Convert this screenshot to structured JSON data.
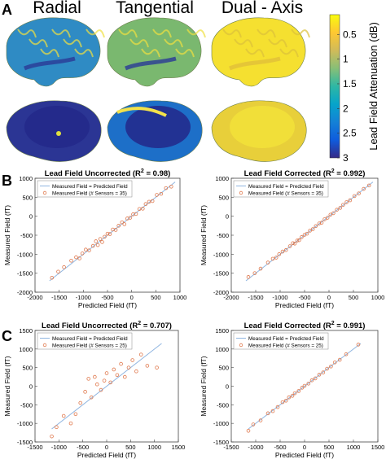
{
  "panel_a": {
    "label": "A",
    "column_titles": [
      "Radial",
      "Tangential",
      "Dual - Axis"
    ],
    "colorbar": {
      "label": "Lead Field Attenuation (dB)",
      "ticks": [
        "0.5",
        "1",
        "1.5",
        "2",
        "2.5",
        "3"
      ],
      "tick_values": [
        0.5,
        1,
        1.5,
        2,
        2.5,
        3
      ],
      "range": [
        0.1,
        3
      ],
      "colormap": [
        "#352a87",
        "#0f5cdd",
        "#1481d6",
        "#06a4ca",
        "#2eb7a4",
        "#87bf77",
        "#d1bb59",
        "#fec832",
        "#f9fb0e"
      ]
    },
    "brain_rows": [
      {
        "view": "lateral",
        "fills": [
          "#2f8bc4",
          "#7ab86f",
          "#f5e030"
        ]
      },
      {
        "view": "medial",
        "fills": [
          "#2b3594",
          "#1d6fc8",
          "#e8cf3a"
        ]
      }
    ]
  },
  "panel_b_label": "B",
  "panel_c_label": "C",
  "chart_data": [
    {
      "type": "scatter",
      "panel": "B",
      "title": "Lead Field Uncorrected (R",
      "title_sup": "2",
      "title_tail": " = 0.98)",
      "xlabel": "Predicted Field (fT)",
      "ylabel": "Measured Field (fT)",
      "xlim": [
        -2000,
        1000
      ],
      "ylim": [
        -2000,
        1000
      ],
      "xticks": [
        -2000,
        -1500,
        -1000,
        -500,
        0,
        500,
        1000
      ],
      "yticks": [
        -2000,
        -1500,
        -1000,
        -500,
        0,
        500,
        1000
      ],
      "legend": [
        "Measured Field = Predicted Field",
        "Measured Field (# Sensors = 35)"
      ],
      "legend_position": "top-left",
      "line": {
        "x": [
          -1700,
          900
        ],
        "y": [
          -1700,
          900
        ],
        "color": "#8fb5e0"
      },
      "marker_color": "#e07b50",
      "points": [
        [
          -1650,
          -1620
        ],
        [
          -1520,
          -1460
        ],
        [
          -1400,
          -1340
        ],
        [
          -1250,
          -1170
        ],
        [
          -1150,
          -1080
        ],
        [
          -1080,
          -1110
        ],
        [
          -1020,
          -980
        ],
        [
          -950,
          -880
        ],
        [
          -880,
          -900
        ],
        [
          -800,
          -780
        ],
        [
          -740,
          -660
        ],
        [
          -700,
          -760
        ],
        [
          -650,
          -600
        ],
        [
          -610,
          -680
        ],
        [
          -560,
          -540
        ],
        [
          -500,
          -460
        ],
        [
          -450,
          -470
        ],
        [
          -390,
          -350
        ],
        [
          -330,
          -360
        ],
        [
          -270,
          -250
        ],
        [
          -200,
          -160
        ],
        [
          -150,
          -210
        ],
        [
          -90,
          -60
        ],
        [
          -30,
          -40
        ],
        [
          30,
          50
        ],
        [
          90,
          60
        ],
        [
          160,
          190
        ],
        [
          230,
          200
        ],
        [
          290,
          320
        ],
        [
          360,
          380
        ],
        [
          430,
          400
        ],
        [
          520,
          560
        ],
        [
          610,
          590
        ],
        [
          710,
          740
        ],
        [
          820,
          780
        ]
      ]
    },
    {
      "type": "scatter",
      "panel": "B",
      "title": "Lead Field Corrected (R",
      "title_sup": "2",
      "title_tail": " = 0.992)",
      "xlabel": "Predicted Field (fT)",
      "ylabel": "Measured Field (fT)",
      "xlim": [
        -2000,
        1000
      ],
      "ylim": [
        -2000,
        1000
      ],
      "xticks": [
        -2000,
        -1500,
        -1000,
        -500,
        0,
        500,
        1000
      ],
      "yticks": [
        -2000,
        -1500,
        -1000,
        -500,
        0,
        500,
        1000
      ],
      "legend": [
        "Measured Field = Predicted Field",
        "Measured Field (# Sensors = 35)"
      ],
      "legend_position": "top-left",
      "line": {
        "x": [
          -1700,
          900
        ],
        "y": [
          -1700,
          900
        ],
        "color": "#8fb5e0"
      },
      "marker_color": "#e07b50",
      "points": [
        [
          -1650,
          -1600
        ],
        [
          -1520,
          -1500
        ],
        [
          -1400,
          -1380
        ],
        [
          -1250,
          -1220
        ],
        [
          -1150,
          -1120
        ],
        [
          -1080,
          -1090
        ],
        [
          -1020,
          -1000
        ],
        [
          -950,
          -930
        ],
        [
          -880,
          -890
        ],
        [
          -800,
          -790
        ],
        [
          -740,
          -710
        ],
        [
          -700,
          -720
        ],
        [
          -650,
          -640
        ],
        [
          -610,
          -630
        ],
        [
          -560,
          -550
        ],
        [
          -500,
          -490
        ],
        [
          -450,
          -460
        ],
        [
          -390,
          -380
        ],
        [
          -330,
          -340
        ],
        [
          -270,
          -260
        ],
        [
          -200,
          -190
        ],
        [
          -150,
          -170
        ],
        [
          -90,
          -80
        ],
        [
          -30,
          -40
        ],
        [
          30,
          40
        ],
        [
          90,
          80
        ],
        [
          160,
          170
        ],
        [
          230,
          220
        ],
        [
          290,
          300
        ],
        [
          360,
          370
        ],
        [
          430,
          420
        ],
        [
          520,
          530
        ],
        [
          610,
          600
        ],
        [
          710,
          720
        ],
        [
          820,
          810
        ]
      ]
    },
    {
      "type": "scatter",
      "panel": "C",
      "title": "Lead Field Uncorrected (R",
      "title_sup": "2",
      "title_tail": " = 0.707)",
      "xlabel": "Predicted Field (fT)",
      "ylabel": "Measured Field (fT)",
      "xlim": [
        -1500,
        1500
      ],
      "ylim": [
        -1500,
        1500
      ],
      "xticks": [
        -1500,
        -1000,
        -500,
        0,
        500,
        1000,
        1500
      ],
      "yticks": [
        -1500,
        -1000,
        -500,
        0,
        500,
        1000,
        1500
      ],
      "legend": [
        "Measured Field = Predicted Field",
        "Measured Field (# Sensors = 25)"
      ],
      "legend_position": "top-left",
      "line": {
        "x": [
          -1150,
          1150
        ],
        "y": [
          -1150,
          1150
        ],
        "color": "#8fb5e0"
      },
      "marker_color": "#e07b50",
      "points": [
        [
          -1150,
          -1350
        ],
        [
          -1050,
          -1100
        ],
        [
          -900,
          -800
        ],
        [
          -750,
          -1000
        ],
        [
          -650,
          -750
        ],
        [
          -550,
          -450
        ],
        [
          -450,
          -150
        ],
        [
          -380,
          200
        ],
        [
          -320,
          -300
        ],
        [
          -250,
          250
        ],
        [
          -200,
          50
        ],
        [
          -120,
          -100
        ],
        [
          -50,
          150
        ],
        [
          0,
          350
        ],
        [
          80,
          100
        ],
        [
          150,
          450
        ],
        [
          220,
          300
        ],
        [
          300,
          600
        ],
        [
          380,
          250
        ],
        [
          460,
          500
        ],
        [
          540,
          700
        ],
        [
          620,
          400
        ],
        [
          720,
          850
        ],
        [
          850,
          550
        ],
        [
          1050,
          500
        ]
      ]
    },
    {
      "type": "scatter",
      "panel": "C",
      "title": "Lead Field Corrected (R",
      "title_sup": "2",
      "title_tail": " = 0.991)",
      "xlabel": "Predicted Field (fT)",
      "ylabel": "Measured Field (fT)",
      "xlim": [
        -1500,
        1500
      ],
      "ylim": [
        -1500,
        1500
      ],
      "xticks": [
        -1500,
        -1000,
        -500,
        0,
        500,
        1000,
        1500
      ],
      "yticks": [
        -1500,
        -1000,
        -500,
        0,
        500,
        1000,
        1500
      ],
      "legend": [
        "Measured Field = Predicted Field",
        "Measured Field (# Sensors = 25)"
      ],
      "legend_position": "top-left",
      "line": {
        "x": [
          -1150,
          1150
        ],
        "y": [
          -1150,
          1150
        ],
        "color": "#8fb5e0"
      },
      "marker_color": "#e07b50",
      "points": [
        [
          -1150,
          -1200
        ],
        [
          -1050,
          -1030
        ],
        [
          -900,
          -920
        ],
        [
          -750,
          -730
        ],
        [
          -650,
          -670
        ],
        [
          -550,
          -560
        ],
        [
          -450,
          -430
        ],
        [
          -380,
          -390
        ],
        [
          -320,
          -300
        ],
        [
          -250,
          -260
        ],
        [
          -200,
          -190
        ],
        [
          -120,
          -130
        ],
        [
          -50,
          -40
        ],
        [
          0,
          10
        ],
        [
          80,
          70
        ],
        [
          150,
          160
        ],
        [
          220,
          210
        ],
        [
          300,
          310
        ],
        [
          380,
          370
        ],
        [
          460,
          470
        ],
        [
          540,
          530
        ],
        [
          620,
          640
        ],
        [
          720,
          710
        ],
        [
          850,
          860
        ],
        [
          1100,
          1120
        ]
      ]
    }
  ]
}
